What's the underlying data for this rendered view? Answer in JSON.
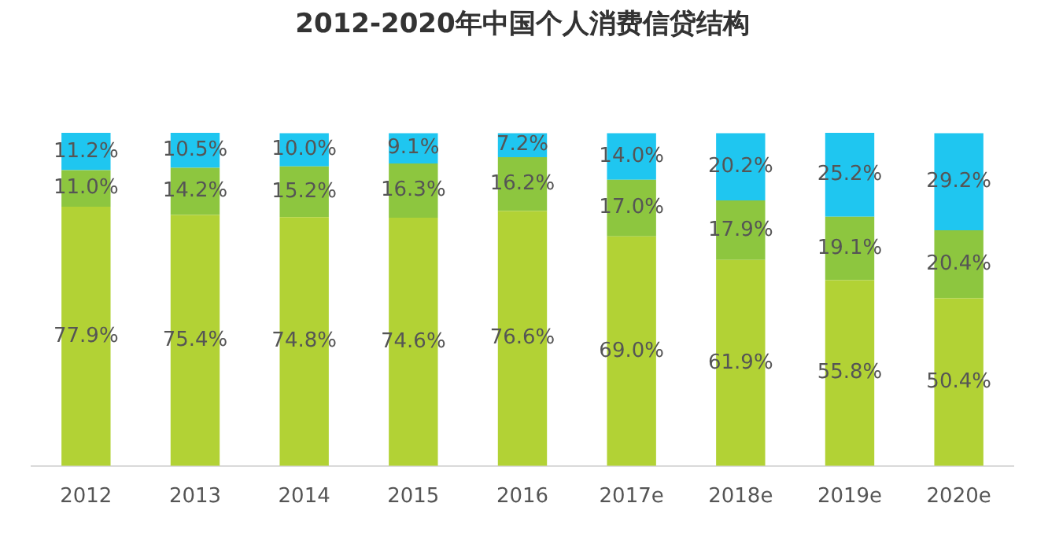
{
  "chart_data": {
    "type": "bar",
    "title": "2012-2020年中国个人消费信贷结构",
    "stacked": true,
    "legend": false,
    "grid": false,
    "categories": [
      "2012",
      "2013",
      "2014",
      "2015",
      "2016",
      "2017e",
      "2018e",
      "2019e",
      "2020e"
    ],
    "series": [
      {
        "color": "#b2d235",
        "values": [
          77.9,
          75.4,
          74.8,
          74.6,
          76.6,
          69.0,
          61.9,
          55.8,
          50.4
        ],
        "value_labels": [
          "77.9%",
          "75.4%",
          "74.8%",
          "74.6%",
          "76.6%",
          "69.0%",
          "61.9%",
          "55.8%",
          "50.4%"
        ]
      },
      {
        "color": "#8dc63f",
        "values": [
          11.0,
          14.2,
          15.2,
          16.3,
          16.2,
          17.0,
          17.9,
          19.1,
          20.4
        ],
        "value_labels": [
          "11.0%",
          "14.2%",
          "15.2%",
          "16.3%",
          "16.2%",
          "17.0%",
          "17.9%",
          "19.1%",
          "20.4%"
        ]
      },
      {
        "color": "#1fc6f0",
        "values": [
          11.2,
          10.5,
          10.0,
          9.1,
          7.2,
          14.0,
          20.2,
          25.2,
          29.2
        ],
        "value_labels": [
          "11.2%",
          "10.5%",
          "10.0%",
          "9.1%",
          "7.2%",
          "14.0%",
          "20.2%",
          "25.2%",
          "29.2%"
        ]
      }
    ]
  }
}
